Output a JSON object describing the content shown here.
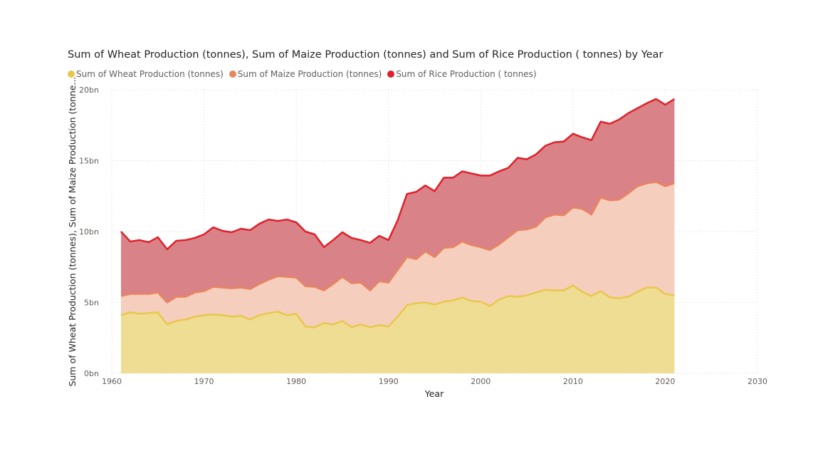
{
  "chart_data": {
    "type": "area",
    "stacked": true,
    "title": "Sum of Wheat Production (tonnes), Sum of Maize Production (tonnes) and Sum of Rice Production ( tonnes) by Year",
    "xlabel": "Year",
    "ylabel": "Sum of Wheat Production (tonnes), Sum of Maize Production (tonne...",
    "xlim": [
      1960,
      2030
    ],
    "ylim": [
      0,
      20000000000
    ],
    "x_ticks": [
      "1960",
      "1970",
      "1980",
      "1990",
      "2000",
      "2010",
      "2020",
      "2030"
    ],
    "y_ticks": [
      "0bn",
      "5bn",
      "10bn",
      "15bn",
      "20bn"
    ],
    "grid": true,
    "legend_position": "top-left",
    "x": [
      1961,
      1962,
      1963,
      1964,
      1965,
      1966,
      1967,
      1968,
      1969,
      1970,
      1971,
      1972,
      1973,
      1974,
      1975,
      1976,
      1977,
      1978,
      1979,
      1980,
      1981,
      1982,
      1983,
      1984,
      1985,
      1986,
      1987,
      1988,
      1989,
      1990,
      1991,
      1992,
      1993,
      1994,
      1995,
      1996,
      1997,
      1998,
      1999,
      2000,
      2001,
      2002,
      2003,
      2004,
      2005,
      2006,
      2007,
      2008,
      2009,
      2010,
      2011,
      2012,
      2013,
      2014,
      2015,
      2016,
      2017,
      2018,
      2019,
      2020,
      2021
    ],
    "series": [
      {
        "name": "Sum of Wheat Production (tonnes)",
        "color": "#E8C84B",
        "fill": "#EEDD92",
        "values": [
          4.1,
          4.3,
          4.2,
          4.25,
          4.3,
          3.45,
          3.7,
          3.8,
          4.0,
          4.1,
          4.15,
          4.1,
          4.0,
          4.05,
          3.8,
          4.1,
          4.25,
          4.35,
          4.1,
          4.2,
          3.3,
          3.25,
          3.55,
          3.45,
          3.7,
          3.25,
          3.45,
          3.25,
          3.4,
          3.3,
          4.0,
          4.8,
          4.95,
          5.0,
          4.85,
          5.05,
          5.15,
          5.35,
          5.1,
          5.05,
          4.75,
          5.2,
          5.45,
          5.4,
          5.5,
          5.7,
          5.9,
          5.85,
          5.85,
          6.2,
          5.75,
          5.45,
          5.8,
          5.35,
          5.3,
          5.4,
          5.75,
          6.05,
          6.05,
          5.6,
          5.5
        ]
      },
      {
        "name": "Sum of Maize Production (tonnes)",
        "color": "#E8855E",
        "fill": "#F5CEBE",
        "values": [
          5.45,
          5.6,
          5.6,
          5.6,
          5.7,
          5.0,
          5.4,
          5.4,
          5.7,
          5.8,
          6.1,
          6.05,
          6.0,
          6.05,
          5.95,
          6.3,
          6.6,
          6.85,
          6.8,
          6.75,
          6.15,
          6.1,
          5.85,
          6.3,
          6.8,
          6.35,
          6.4,
          5.85,
          6.5,
          6.4,
          7.3,
          8.2,
          8.05,
          8.6,
          8.2,
          8.85,
          8.9,
          9.3,
          9.05,
          8.9,
          8.7,
          9.1,
          9.6,
          10.1,
          10.15,
          10.35,
          11.0,
          11.2,
          11.15,
          11.7,
          11.6,
          11.2,
          12.4,
          12.2,
          12.25,
          12.7,
          13.2,
          13.4,
          13.5,
          13.2,
          13.4
        ]
      },
      {
        "name": "Sum of Rice  Production ( tonnes)",
        "color": "#E0202A",
        "fill": "#D98288",
        "values": [
          10.0,
          9.3,
          9.4,
          9.25,
          9.6,
          8.75,
          9.35,
          9.4,
          9.55,
          9.8,
          10.3,
          10.05,
          9.95,
          10.2,
          10.1,
          10.55,
          10.85,
          10.75,
          10.85,
          10.65,
          10.0,
          9.8,
          8.9,
          9.4,
          9.95,
          9.55,
          9.4,
          9.2,
          9.7,
          9.4,
          10.8,
          12.65,
          12.8,
          13.25,
          12.85,
          13.8,
          13.8,
          14.25,
          14.1,
          13.95,
          13.95,
          14.25,
          14.5,
          15.2,
          15.1,
          15.45,
          16.05,
          16.3,
          16.35,
          16.9,
          16.65,
          16.45,
          17.75,
          17.6,
          17.9,
          18.35,
          18.7,
          19.05,
          19.35,
          18.95,
          19.35
        ]
      }
    ]
  }
}
